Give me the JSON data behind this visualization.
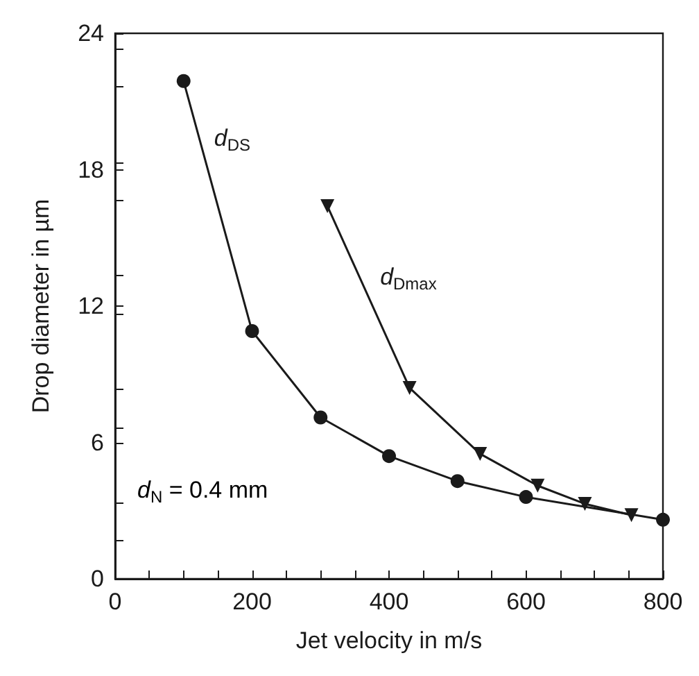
{
  "chart_data": {
    "type": "line",
    "xlabel": "Jet velocity in m/s",
    "ylabel": "Drop diameter in µm",
    "xlim": [
      0,
      800
    ],
    "xticks": [
      0,
      200,
      400,
      600,
      800
    ],
    "ylim": [
      0,
      24
    ],
    "yticks": [
      0,
      6,
      12,
      18,
      24
    ],
    "grid": false,
    "legend": false,
    "line_style": "solid",
    "series": [
      {
        "name": "d$_{DS}$",
        "color": "#1a1a1a",
        "marker": "circle",
        "x": [
          100,
          200,
          300,
          400,
          500,
          600,
          800
        ],
        "values": [
          21.9,
          10.9,
          7.1,
          5.4,
          4.3,
          3.6,
          2.6
        ]
      },
      {
        "name": "d$_{Dmax}$",
        "color": "#1a1a1a",
        "marker": "triangle",
        "x": [
          310,
          430,
          533,
          617,
          686,
          754
        ],
        "values": [
          16.4,
          8.4,
          5.5,
          4.1,
          3.3,
          2.8
        ]
      }
    ],
    "annotations": [
      "d$_{N}$ = 0.4 mm"
    ]
  }
}
